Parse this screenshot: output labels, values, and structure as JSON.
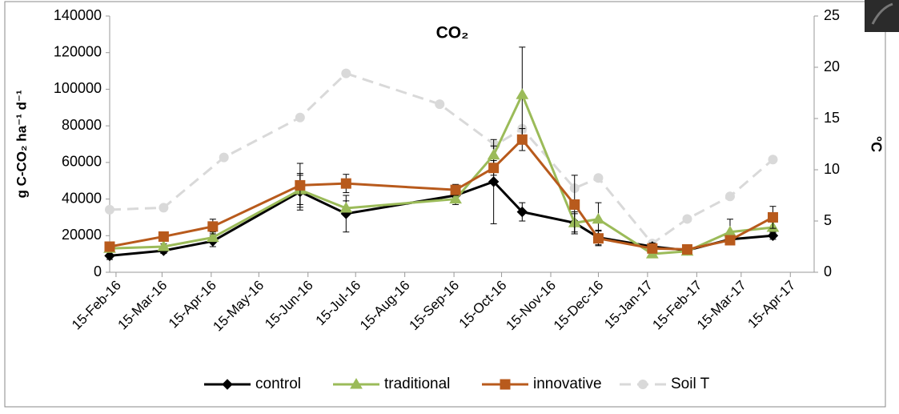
{
  "chart_data": {
    "type": "line",
    "title": "CO₂",
    "y_label": "g C-CO₂ ha⁻¹ d⁻¹",
    "y2_label": "°C",
    "x": [
      "2016-02-11",
      "2016-03-16",
      "2016-04-16",
      "2016-06-10",
      "2016-07-09",
      "2016-09-16",
      "2016-10-10",
      "2016-10-28",
      "2016-11-30",
      "2016-12-15",
      "2017-01-18",
      "2017-02-09",
      "2017-03-08",
      "2017-04-04"
    ],
    "series": [
      {
        "name": "control",
        "color": "#000000",
        "marker": "diamond",
        "values": [
          9000,
          11800,
          17000,
          44000,
          32000,
          42000,
          49500,
          33000,
          27000,
          19000,
          14000,
          12000,
          18000,
          20000
        ],
        "errors": [
          2000,
          1500,
          3000,
          10000,
          10000,
          3000,
          23000,
          5000,
          6000,
          4000,
          2000,
          1500,
          2000,
          2000
        ]
      },
      {
        "name": "traditional",
        "color": "#9bbb59",
        "marker": "triangle",
        "values": [
          13000,
          14000,
          19000,
          45000,
          35000,
          40000,
          64000,
          97000,
          27000,
          29000,
          10000,
          11500,
          22000,
          24500
        ],
        "errors": [
          2000,
          1500,
          3000,
          8000,
          4000,
          3000,
          5000,
          26000,
          5000,
          9000,
          2000,
          1500,
          7000,
          3000
        ]
      },
      {
        "name": "innovative",
        "color": "#b85a1c",
        "marker": "square",
        "values": [
          14000,
          19500,
          25000,
          47500,
          48500,
          45000,
          57000,
          72500,
          37000,
          18500,
          13000,
          12500,
          17500,
          30000
        ],
        "errors": [
          2000,
          2000,
          4000,
          12000,
          5000,
          3000,
          4000,
          6000,
          16000,
          4000,
          2000,
          1500,
          2000,
          6000
        ]
      },
      {
        "name": "Soil T",
        "color": "#d9d9d9",
        "marker": "circle",
        "dashed": true,
        "axis": "y2",
        "x": [
          "2016-02-11",
          "2016-03-16",
          "2016-04-23",
          "2016-06-10",
          "2016-07-09",
          "2016-09-06",
          "2016-10-11",
          "2016-10-28",
          "2016-11-30",
          "2016-12-15",
          "2017-01-18",
          "2017-02-09",
          "2017-03-08",
          "2017-04-04"
        ],
        "values": [
          6.1,
          6.3,
          11.2,
          15.1,
          19.4,
          16.4,
          12.4,
          14.0,
          8.2,
          9.2,
          2.8,
          5.2,
          7.4,
          11.0
        ]
      }
    ],
    "xlim": [
      "2016-02-11",
      "2017-04-30"
    ],
    "xticks": [
      {
        "value": "2016-02-15",
        "label": "15-Feb-16"
      },
      {
        "value": "2016-03-15",
        "label": "15-Mar-16"
      },
      {
        "value": "2016-04-15",
        "label": "15-Apr-16"
      },
      {
        "value": "2016-05-15",
        "label": "15-May-16"
      },
      {
        "value": "2016-06-15",
        "label": "15-Jun-16"
      },
      {
        "value": "2016-07-15",
        "label": "15-Jul-16"
      },
      {
        "value": "2016-08-15",
        "label": "15-Aug-16"
      },
      {
        "value": "2016-09-15",
        "label": "15-Sep-16"
      },
      {
        "value": "2016-10-15",
        "label": "15-Oct-16"
      },
      {
        "value": "2016-11-15",
        "label": "15-Nov-16"
      },
      {
        "value": "2016-12-15",
        "label": "15-Dec-16"
      },
      {
        "value": "2017-01-15",
        "label": "15-Jan-17"
      },
      {
        "value": "2017-02-15",
        "label": "15-Feb-17"
      },
      {
        "value": "2017-03-15",
        "label": "15-Mar-17"
      },
      {
        "value": "2017-04-15",
        "label": "15-Apr-17"
      }
    ],
    "ylim": [
      0,
      140000
    ],
    "yticks": [
      0,
      20000,
      40000,
      60000,
      80000,
      100000,
      120000,
      140000
    ],
    "y2lim": [
      0,
      25
    ],
    "y2ticks": [
      0,
      5,
      10,
      15,
      20,
      25
    ],
    "legend": "bottom"
  }
}
